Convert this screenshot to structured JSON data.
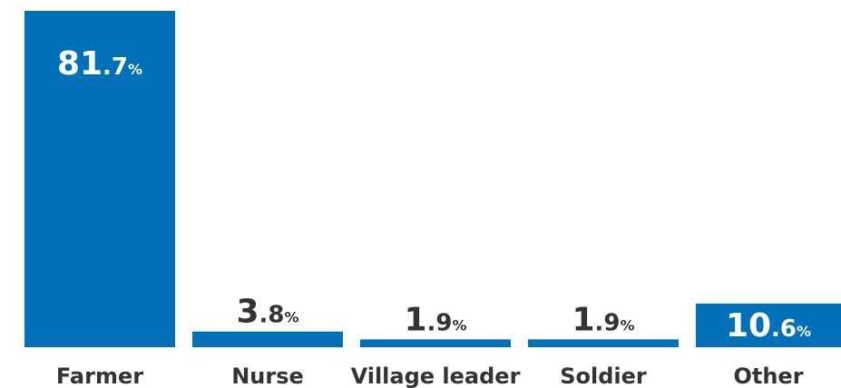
{
  "chart_data": {
    "type": "bar",
    "categories": [
      "Farmer",
      "Nurse",
      "Village leader",
      "Soldier",
      "Other"
    ],
    "values": [
      81.7,
      3.8,
      1.9,
      1.9,
      10.6
    ],
    "value_labels": [
      "81.7%",
      "3.8%",
      "1.9%",
      "1.9%",
      "10.6%"
    ],
    "color": "#0070b8"
  }
}
